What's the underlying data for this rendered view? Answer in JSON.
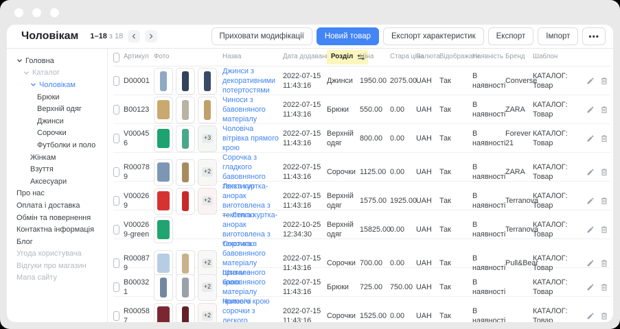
{
  "header": {
    "title": "Чоловікам",
    "page_range": "1–18",
    "page_total": "з 18"
  },
  "toolbar": {
    "hide_mods": "Приховати модифікації",
    "new_product": "Новий товар",
    "export_attrs": "Експорт характеристик",
    "export": "Експорт",
    "import": "Імпорт",
    "more": "•••"
  },
  "colors": {
    "accent": "#4285f4",
    "sort_highlight": "#fbf6bd",
    "link": "#4285f4"
  },
  "icons": {
    "prev": "chevron-left-icon",
    "next": "chevron-right-icon",
    "sort": "sort-swap-icon",
    "edit": "pencil-icon",
    "delete": "trash-icon"
  },
  "sidebar": {
    "items": [
      {
        "label": "Головна",
        "level": 0,
        "chevron": true
      },
      {
        "label": "Каталог",
        "level": 1,
        "chevron": true,
        "state": "muted"
      },
      {
        "label": "Чоловікам",
        "level": 2,
        "chevron": true,
        "state": "active"
      },
      {
        "label": "Брюки",
        "level": 3
      },
      {
        "label": "Верхній одяг",
        "level": 3
      },
      {
        "label": "Джинси",
        "level": 3
      },
      {
        "label": "Сорочки",
        "level": 3
      },
      {
        "label": "Футболки и поло",
        "level": 3
      },
      {
        "label": "Жінкам",
        "level": 2
      },
      {
        "label": "Взуття",
        "level": 2
      },
      {
        "label": "Аксесуари",
        "level": 2
      },
      {
        "label": "Про нас",
        "level": 0
      },
      {
        "label": "Оплата і доставка",
        "level": 0
      },
      {
        "label": "Обмін та повернення",
        "level": 0
      },
      {
        "label": "Контактна інформація",
        "level": 0
      },
      {
        "label": "Блог",
        "level": 0
      },
      {
        "label": "Угода користувача",
        "level": 0,
        "state": "muted"
      },
      {
        "label": "Відгуки про магазин",
        "level": 0,
        "state": "muted"
      },
      {
        "label": "Мапа сайту",
        "level": 0,
        "state": "muted"
      }
    ]
  },
  "table": {
    "headers": {
      "article": "Артикул",
      "photo": "Фото",
      "name": "Назва",
      "date": "Дата додавання",
      "section": "Розділ",
      "price": "Ціна",
      "old_price": "Стара ціна",
      "currency": "Валюта",
      "display": "Відображати",
      "availability": "Наявність",
      "brand": "Бренд",
      "template": "Шаблон"
    },
    "rows": [
      {
        "article": "D00001",
        "photos": [
          {
            "shape": "figure",
            "color": "#8fa8c4"
          },
          {
            "shape": "figure",
            "color": "#32415c"
          },
          {
            "shape": "figure",
            "color": "#394a66"
          }
        ],
        "name": "Джинси з декоративними потертостями",
        "date": "2022-07-15 11:43:16",
        "section": "Джинси",
        "price": "1950.00",
        "old_price": "2075.00",
        "currency": "UAH",
        "display": "Так",
        "availability": "В наявності",
        "brand": "Converse",
        "template": "КАТАЛОГ: Товар"
      },
      {
        "article": "B00123",
        "photos": [
          {
            "shape": "garment",
            "color": "#c9a96e"
          },
          {
            "shape": "figure",
            "color": "#b9b3a6"
          },
          {
            "shape": "figure",
            "color": "#c2a06b"
          }
        ],
        "name": "Чиноси з бавовняного матеріалу",
        "date": "2022-07-15 11:43:16",
        "section": "Брюки",
        "price": "550.00",
        "old_price": "0.00",
        "currency": "UAH",
        "display": "Так",
        "availability": "В наявності",
        "brand": "ZARA",
        "template": "КАТАЛОГ: Товар"
      },
      {
        "article": "V000456",
        "photos": [
          {
            "shape": "garment",
            "color": "#1ca36f"
          },
          {
            "shape": "figure",
            "color": "#4aa88a"
          },
          {
            "more": "+3",
            "bg": "#f3f8f5"
          }
        ],
        "name": "Чоловіча вітрівка прямого крою",
        "date": "2022-07-15 11:43:16",
        "section": "Верхній одяг",
        "price": "800.00",
        "old_price": "0.00",
        "currency": "UAH",
        "display": "Так",
        "availability": "В наявності",
        "brand": "Forever 21",
        "template": "КАТАЛОГ: Товар"
      },
      {
        "article": "R000789",
        "photos": [
          {
            "shape": "garment",
            "color": "#7d96b6"
          },
          {
            "shape": "figure",
            "color": "#a98a5f"
          },
          {
            "more": "+2",
            "bg": "#f7f7f5"
          }
        ],
        "name": "Сорочка з гладкого бавовняного текстилю",
        "date": "2022-07-15 11:43:16",
        "section": "Сорочки",
        "price": "1125.00",
        "old_price": "0.00",
        "currency": "UAH",
        "display": "Так",
        "availability": "В наявності",
        "brand": "ZARA",
        "template": "КАТАЛОГ: Товар"
      },
      {
        "article": "V000269",
        "photos": [
          {
            "shape": "garment",
            "color": "#d63231"
          },
          {
            "shape": "figure",
            "color": "#c62b2a"
          },
          {
            "more": "+2",
            "bg": "#fbf3f3"
          }
        ],
        "name": "Легка куртка-анорак виготовлена з текстилю",
        "date": "2022-07-15 11:43:16",
        "section": "Верхній одяг",
        "price": "1575.00",
        "old_price": "1925.00",
        "currency": "UAH",
        "display": "Так",
        "availability": "В наявності",
        "brand": "Terranova",
        "template": "КАТАЛОГ: Товар"
      },
      {
        "article": "V000269-green",
        "photos": [
          {
            "shape": "garment",
            "color": "#21a471"
          }
        ],
        "mod": "—",
        "name": "Легка куртка-анорак виготовлена з текстилю",
        "date": "2022-10-25 12:34:30",
        "section": "Верхній одяг",
        "price": "15825.00",
        "old_price": "0.00",
        "currency": "UAH",
        "display": "Так",
        "availability": "В наявності",
        "brand": "Terranova",
        "template": "КАТАЛОГ: Товар"
      },
      {
        "article": "R000879",
        "photos": [
          {
            "shape": "garment",
            "color": "#b7cde4"
          },
          {
            "shape": "figure",
            "color": "#c9b289"
          },
          {
            "more": "+2",
            "bg": "#f8f8f6"
          }
        ],
        "name": "Сорочка з бавовняного матеріалу приталеного крою",
        "date": "2022-07-15 11:43:16",
        "section": "Сорочки",
        "price": "700.00",
        "old_price": "0.00",
        "currency": "UAH",
        "display": "Так",
        "availability": "В наявності",
        "brand": "Pull&Bear",
        "template": "КАТАЛОГ: Товар"
      },
      {
        "article": "B000321",
        "photos": [
          {
            "shape": "figure",
            "color": "#7287a0"
          },
          {
            "shape": "figure",
            "color": "#9aa1ab"
          },
          {
            "more": "+2",
            "bg": "#f8f8f8"
          }
        ],
        "name": "Штани з бавовняного матеріалу прямого крою",
        "date": "2022-07-15 11:43:16",
        "section": "Брюки",
        "price": "725.00",
        "old_price": "750.00",
        "currency": "UAH",
        "display": "Так",
        "availability": "В наявності",
        "brand": "",
        "template": "КАТАЛОГ: Товар"
      },
      {
        "article": "R000587",
        "photos": [
          {
            "shape": "garment",
            "color": "#7b2733"
          },
          {
            "shape": "figure",
            "color": "#642029"
          },
          {
            "more": "+2",
            "bg": "#faf7f7"
          }
        ],
        "name": "Чоловічі сорочки з легкого текстилю",
        "date": "2022-07-15 11:43:16",
        "section": "Сорочки",
        "price": "1525.00",
        "old_price": "0.00",
        "currency": "UAH",
        "display": "Так",
        "availability": "В наявності",
        "brand": "",
        "template": "КАТАЛОГ: Товар"
      }
    ]
  }
}
